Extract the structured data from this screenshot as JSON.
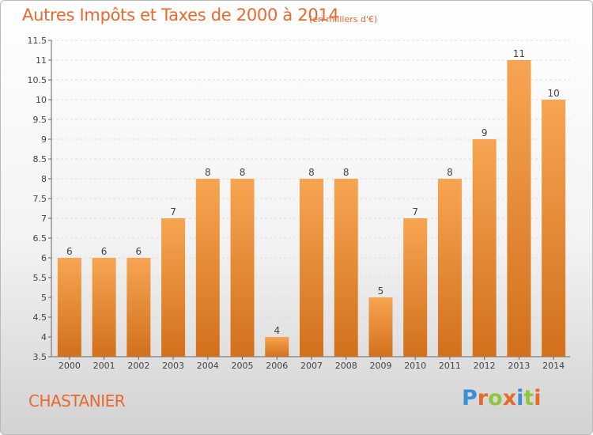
{
  "chart_data": {
    "type": "bar",
    "title": "Autres Impôts et Taxes de 2000 à 2014",
    "subtitle": "(en milliers d'€)",
    "categories": [
      "2000",
      "2001",
      "2002",
      "2003",
      "2004",
      "2005",
      "2006",
      "2007",
      "2008",
      "2009",
      "2010",
      "2011",
      "2012",
      "2013",
      "2014"
    ],
    "values": [
      6,
      6,
      6,
      7,
      8,
      8,
      4,
      8,
      8,
      5,
      7,
      8,
      9,
      11,
      10
    ],
    "data_labels": [
      "6",
      "6",
      "6",
      "7",
      "8",
      "8",
      "4",
      "8",
      "8",
      "5",
      "7",
      "8",
      "9",
      "11",
      "10"
    ],
    "ylim": [
      3.5,
      11.5
    ],
    "yticks": [
      3.5,
      4,
      4.5,
      5,
      5.5,
      6,
      6.5,
      7,
      7.5,
      8,
      8.5,
      9,
      9.5,
      10,
      10.5,
      11,
      11.5
    ],
    "ytick_labels": [
      "3.5",
      "4",
      "4.5",
      "5",
      "5.5",
      "6",
      "6.5",
      "7",
      "7.5",
      "8",
      "8.5",
      "9",
      "9.5",
      "10",
      "10.5",
      "11",
      "11.5"
    ],
    "grid": true,
    "bar_color_top": "#f7a552",
    "bar_color_bottom": "#d2701c",
    "legend": "none"
  },
  "footer": {
    "commune": "CHASTANIER",
    "logo_letters": [
      "P",
      "r",
      "o",
      "x",
      "i",
      "t",
      "i"
    ],
    "logo_colors": [
      "#3a8fd6",
      "#e8692d",
      "#8fc73e",
      "#e8692d",
      "#3a8fd6",
      "#8fc73e",
      "#e8692d"
    ]
  }
}
